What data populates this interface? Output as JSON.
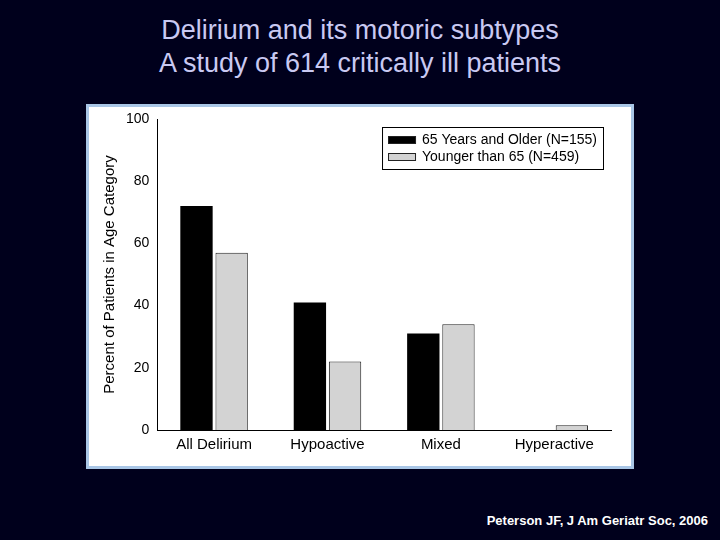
{
  "chart_data": {
    "type": "bar",
    "title": "Delirium and its motoric subtypes",
    "subtitle": "A study of 614 critically ill patients",
    "annotation": "Peterson JF, J Am Geriatr Soc, 2006",
    "y_label": "Percent of Patients in Age Category",
    "categories": [
      "All Delirium",
      "Hypoactive",
      "Mixed",
      "Hyperactive"
    ],
    "series": [
      {
        "name": "65 Years and Older (N=155)",
        "color": "#000000",
        "values": [
          72,
          41,
          31,
          0
        ]
      },
      {
        "name": "Younger than 65 (N=459)",
        "color": "#d3d3d3",
        "values": [
          57,
          22,
          34,
          1.5
        ]
      }
    ],
    "ylim": [
      0,
      100
    ],
    "yticks": [
      0,
      20,
      40,
      60,
      80,
      100
    ],
    "grid": false,
    "legend": "upper right"
  }
}
